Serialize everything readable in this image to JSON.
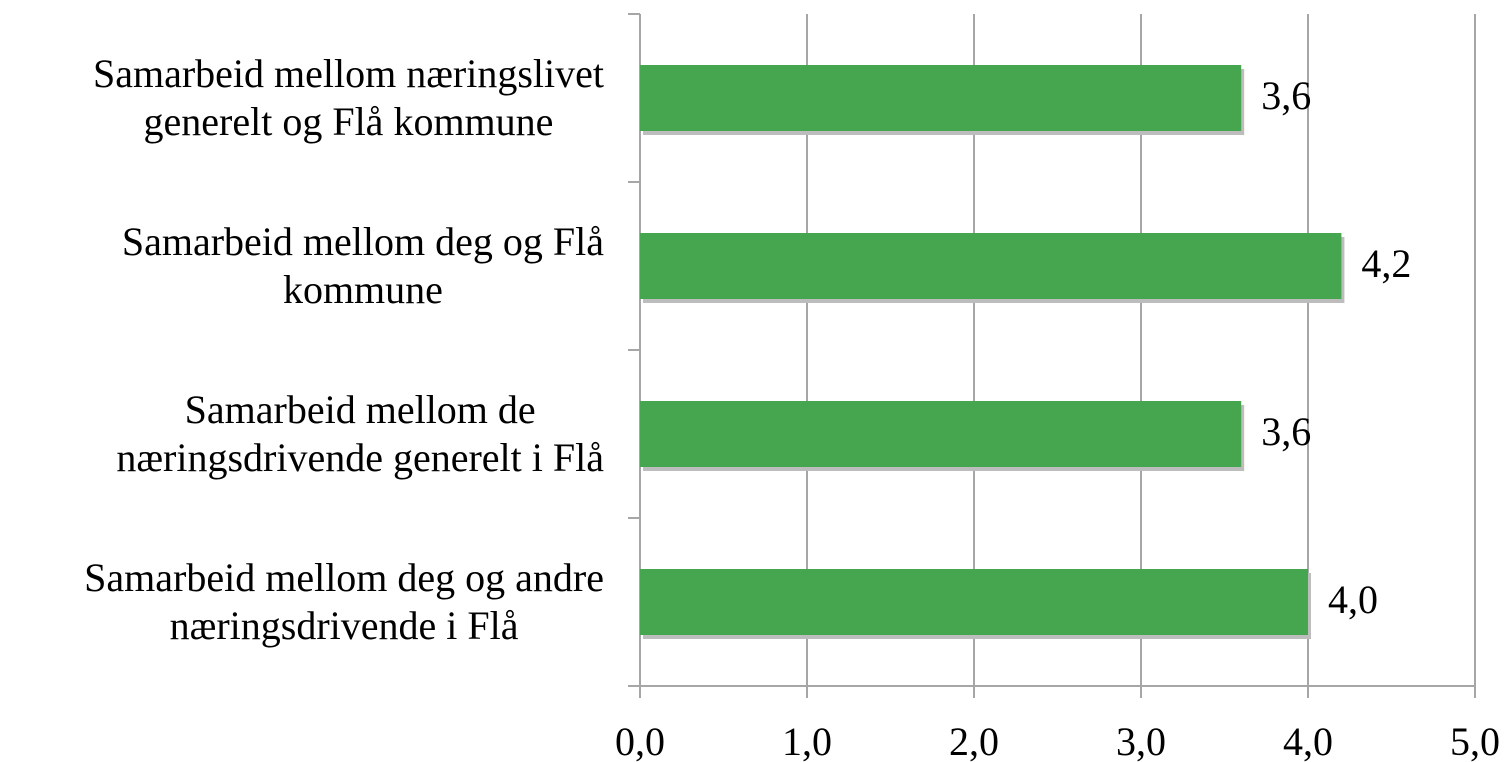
{
  "chart_data": {
    "type": "bar",
    "orientation": "horizontal",
    "categories": [
      "Samarbeid mellom næringslivet\ngenerelt og Flå kommune",
      "Samarbeid mellom deg og Flå\nkommune",
      "Samarbeid mellom de\nnæringsdrivende generelt i Flå",
      "Samarbeid mellom deg og andre\nnæringsdrivende i Flå"
    ],
    "values": [
      3.6,
      4.2,
      3.6,
      4.0
    ],
    "value_labels": [
      "3,6",
      "4,2",
      "3,6",
      "4,0"
    ],
    "color": "#46a54f",
    "xlim": [
      0,
      5
    ],
    "xticks": [
      {
        "value": 0,
        "label": "0,0"
      },
      {
        "value": 1,
        "label": "1,0"
      },
      {
        "value": 2,
        "label": "2,0"
      },
      {
        "value": 3,
        "label": "3,0"
      },
      {
        "value": 4,
        "label": "4,0"
      },
      {
        "value": 5,
        "label": "5,0"
      }
    ],
    "grid": true
  }
}
